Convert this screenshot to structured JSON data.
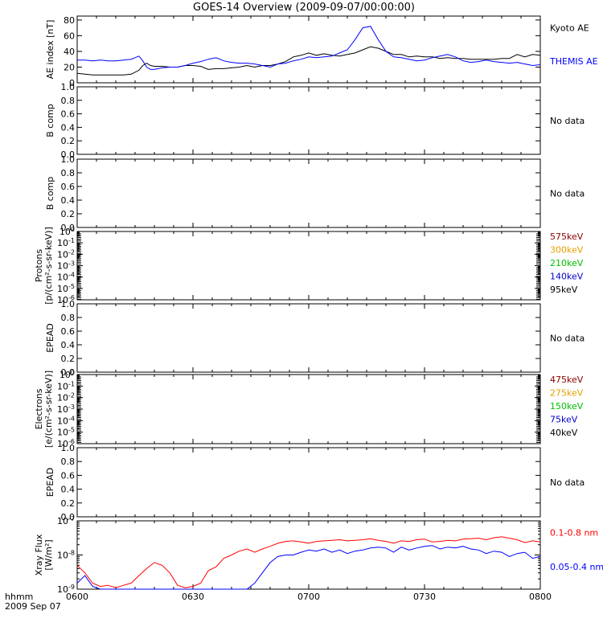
{
  "title": "GOES-14 Overview (2009-09-07/00:00:00)",
  "time_axis": {
    "ticks": [
      "0600",
      "0630",
      "0700",
      "0730",
      "0800"
    ],
    "left_label_1": "hhmm",
    "left_label_2": "2009 Sep 07"
  },
  "no_data_text": "No data",
  "chart_data": [
    {
      "type": "line",
      "panel": "ae",
      "ylabel": "AE index [nT]",
      "ylim": [
        0,
        85
      ],
      "yticks": [
        "0",
        "20",
        "40",
        "60",
        "80"
      ],
      "x_minutes": [
        0,
        2,
        4,
        6,
        8,
        10,
        12,
        14,
        16,
        17,
        18,
        19,
        20,
        22,
        24,
        26,
        28,
        30,
        32,
        34,
        36,
        38,
        40,
        42,
        44,
        46,
        48,
        50,
        52,
        54,
        56,
        58,
        60,
        62,
        64,
        66,
        68,
        70,
        72,
        74,
        76,
        78,
        80,
        82,
        84,
        86,
        88,
        90,
        92,
        94,
        96,
        98,
        100,
        102,
        104,
        106,
        108,
        110,
        112,
        114,
        116,
        118,
        120
      ],
      "series": [
        {
          "name": "Kyoto AE",
          "color": "#000000",
          "values": [
            12,
            11,
            10,
            10,
            10,
            10,
            10,
            11,
            16,
            22,
            25,
            22,
            21,
            21,
            20,
            20,
            22,
            22,
            21,
            17,
            18,
            18,
            19,
            20,
            22,
            20,
            22,
            22,
            24,
            27,
            33,
            35,
            38,
            35,
            37,
            35,
            34,
            36,
            38,
            42,
            46,
            44,
            40,
            36,
            36,
            33,
            34,
            33,
            33,
            31,
            32,
            31,
            31,
            30,
            30,
            30,
            30,
            31,
            31,
            36,
            33,
            36,
            35
          ]
        },
        {
          "name": "THEMIS AE",
          "color": "#0000ff",
          "values": [
            29,
            29,
            28,
            29,
            28,
            28,
            29,
            30,
            34,
            28,
            20,
            17,
            17,
            19,
            20,
            20,
            22,
            25,
            27,
            30,
            32,
            28,
            26,
            25,
            25,
            24,
            22,
            20,
            24,
            25,
            28,
            30,
            33,
            32,
            33,
            34,
            38,
            42,
            55,
            70,
            72,
            55,
            40,
            33,
            32,
            30,
            28,
            29,
            32,
            34,
            36,
            33,
            28,
            26,
            27,
            29,
            27,
            26,
            25,
            26,
            24,
            22,
            23
          ]
        }
      ]
    },
    {
      "type": "line",
      "panel": "bcomp1",
      "ylabel": "B comp",
      "ylim": [
        0,
        1
      ],
      "yticks": [
        "0.0",
        "0.2",
        "0.4",
        "0.6",
        "0.8",
        "1.0"
      ],
      "series": []
    },
    {
      "type": "line",
      "panel": "bcomp2",
      "ylabel": "B comp",
      "ylim": [
        0,
        1
      ],
      "yticks": [
        "0.0",
        "0.2",
        "0.4",
        "0.6",
        "0.8",
        "1.0"
      ],
      "series": []
    },
    {
      "type": "line",
      "panel": "protons",
      "scale": "log",
      "ylabel": "Protons",
      "ylabel2": "[p/(cm²-s-sr-keV)]",
      "ylim": [
        1e-06,
        1
      ],
      "series": [
        {
          "name": "575keV",
          "color": "#8b0000",
          "values": []
        },
        {
          "name": "300keV",
          "color": "#e6a000",
          "values": []
        },
        {
          "name": "210keV",
          "color": "#00c000",
          "values": []
        },
        {
          "name": "140keV",
          "color": "#0000cc",
          "values": []
        },
        {
          "name": "95keV",
          "color": "#000000",
          "values": []
        }
      ]
    },
    {
      "type": "line",
      "panel": "epead1",
      "ylabel": "EPEAD",
      "ylim": [
        0,
        1
      ],
      "yticks": [
        "0.0",
        "0.2",
        "0.4",
        "0.6",
        "0.8",
        "1.0"
      ],
      "series": []
    },
    {
      "type": "line",
      "panel": "electrons",
      "scale": "log",
      "ylabel": "Electrons",
      "ylabel2": "[e/(cm²-s-sr-keV)]",
      "ylim": [
        1e-06,
        1
      ],
      "series": [
        {
          "name": "475keV",
          "color": "#8b0000",
          "values": []
        },
        {
          "name": "275keV",
          "color": "#e6a000",
          "values": []
        },
        {
          "name": "150keV",
          "color": "#00c000",
          "values": []
        },
        {
          "name": "75keV",
          "color": "#0000cc",
          "values": []
        },
        {
          "name": "40keV",
          "color": "#000000",
          "values": []
        }
      ]
    },
    {
      "type": "line",
      "panel": "epead2",
      "ylabel": "EPEAD",
      "ylim": [
        0,
        1
      ],
      "yticks": [
        "0.0",
        "0.2",
        "0.4",
        "0.6",
        "0.8",
        "1.0"
      ],
      "series": []
    },
    {
      "type": "line",
      "panel": "xray",
      "scale": "log",
      "ylabel": "Xray Flux",
      "ylabel2": "[W/m²]",
      "ylim": [
        1e-09,
        1e-07
      ],
      "x_minutes": [
        0,
        2,
        4,
        6,
        8,
        10,
        12,
        14,
        16,
        18,
        20,
        22,
        24,
        26,
        28,
        30,
        32,
        34,
        36,
        38,
        40,
        42,
        44,
        46,
        48,
        50,
        52,
        54,
        56,
        58,
        60,
        62,
        64,
        66,
        68,
        70,
        72,
        74,
        76,
        78,
        80,
        82,
        84,
        86,
        88,
        90,
        92,
        94,
        96,
        98,
        100,
        102,
        104,
        106,
        108,
        110,
        112,
        114,
        116,
        118,
        120
      ],
      "series": [
        {
          "name": "0.1-0.8 nm",
          "color": "#ff0000",
          "values": [
            5e-09,
            3e-09,
            1.5e-09,
            1.2e-09,
            1.3e-09,
            1.1e-09,
            1.3e-09,
            1.5e-09,
            2.5e-09,
            4e-09,
            6e-09,
            5e-09,
            3e-09,
            1.3e-09,
            1.1e-09,
            1.2e-09,
            1.5e-09,
            3.5e-09,
            4.5e-09,
            8e-09,
            1e-08,
            1.3e-08,
            1.5e-08,
            1.2e-08,
            1.5e-08,
            1.8e-08,
            2.2e-08,
            2.5e-08,
            2.6e-08,
            2.4e-08,
            2.2e-08,
            2.5e-08,
            2.6e-08,
            2.7e-08,
            2.8e-08,
            2.6e-08,
            2.7e-08,
            2.8e-08,
            3e-08,
            2.7e-08,
            2.5e-08,
            2.2e-08,
            2.6e-08,
            2.5e-08,
            2.8e-08,
            2.9e-08,
            2.4e-08,
            2.5e-08,
            2.7e-08,
            2.6e-08,
            2.9e-08,
            3e-08,
            3.1e-08,
            2.8e-08,
            3.2e-08,
            3.4e-08,
            3.1e-08,
            2.8e-08,
            2.3e-08,
            2.6e-08,
            2.4e-08
          ]
        },
        {
          "name": "0.05-0.4 nm",
          "color": "#0000ff",
          "values": [
            1.5e-09,
            2.5e-09,
            1.2e-09,
            1e-09,
            1e-09,
            1e-09,
            1e-09,
            1e-09,
            1e-09,
            1e-09,
            1e-09,
            1e-09,
            1e-09,
            1e-09,
            1e-09,
            1e-09,
            1e-09,
            1e-09,
            1e-09,
            1e-09,
            1e-09,
            1e-09,
            1e-09,
            1.5e-09,
            3e-09,
            6e-09,
            9e-09,
            1e-08,
            1e-08,
            1.2e-08,
            1.4e-08,
            1.3e-08,
            1.5e-08,
            1.2e-08,
            1.4e-08,
            1.1e-08,
            1.3e-08,
            1.4e-08,
            1.6e-08,
            1.7e-08,
            1.6e-08,
            1.2e-08,
            1.7e-08,
            1.4e-08,
            1.6e-08,
            1.8e-08,
            1.9e-08,
            1.5e-08,
            1.7e-08,
            1.6e-08,
            1.8e-08,
            1.5e-08,
            1.4e-08,
            1.1e-08,
            1.3e-08,
            1.2e-08,
            9e-09,
            1.1e-08,
            1.2e-08,
            8e-09,
            9e-09
          ]
        }
      ]
    }
  ]
}
